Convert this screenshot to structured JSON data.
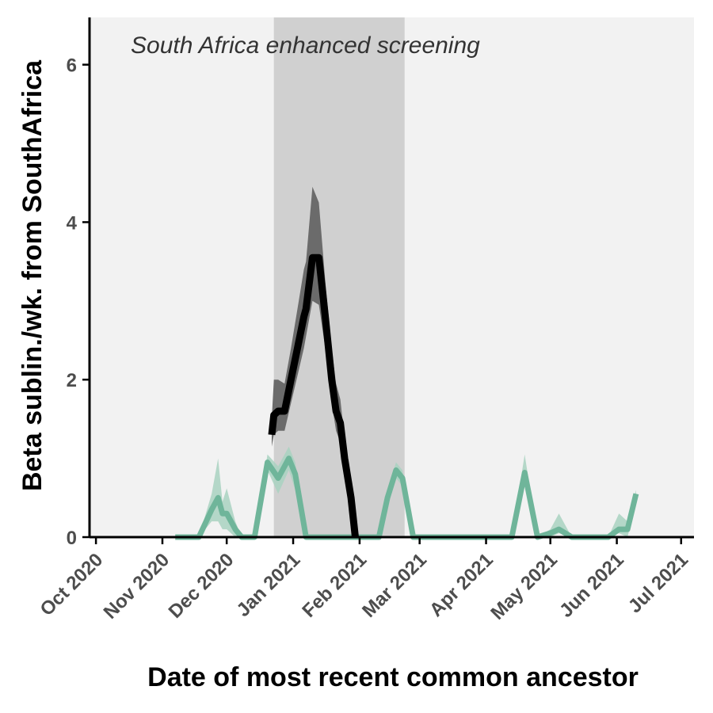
{
  "chart_data": {
    "type": "line",
    "title": "",
    "xlabel": "Date of most recent common ancestor",
    "ylabel": "Beta sublin./wk. from SouthAfrica",
    "annotation": "South Africa enhanced screening",
    "x_domain": [
      "2020-10-01",
      "2021-07-01"
    ],
    "xlim": [
      "2020-09-28",
      "2021-07-07"
    ],
    "ylim": [
      0,
      6.6
    ],
    "y_ticks": [
      0,
      2,
      4,
      6
    ],
    "x_ticks": [
      {
        "date": "2020-10-01",
        "label": "Oct 2020"
      },
      {
        "date": "2020-11-01",
        "label": "Nov 2020"
      },
      {
        "date": "2020-12-01",
        "label": "Dec 2020"
      },
      {
        "date": "2021-01-01",
        "label": "Jan 2021"
      },
      {
        "date": "2021-02-01",
        "label": "Feb 2021"
      },
      {
        "date": "2021-03-01",
        "label": "Mar 2021"
      },
      {
        "date": "2021-04-01",
        "label": "Apr 2021"
      },
      {
        "date": "2021-05-01",
        "label": "May 2021"
      },
      {
        "date": "2021-06-01",
        "label": "Jun 2021"
      },
      {
        "date": "2021-07-01",
        "label": "Jul 2021"
      }
    ],
    "highlight_period": {
      "start": "2020-12-23",
      "end": "2021-02-22"
    },
    "colors": {
      "panel_background": "#f2f2f2",
      "highlight": "#d0d0d0",
      "series_black": "#000000",
      "band_black": "#6b6b6b",
      "series_green": "#6fb59a",
      "band_green": "#a9d2c1"
    },
    "grid": false,
    "series": [
      {
        "color": "#6fb59a",
        "band_color": "#a9d2c1",
        "points": [
          {
            "x": "2020-11-07",
            "y": 0,
            "lo": 0,
            "hi": 0
          },
          {
            "x": "2020-11-18",
            "y": 0,
            "lo": 0,
            "hi": 0
          },
          {
            "x": "2020-11-24",
            "y": 0.35,
            "lo": 0.2,
            "hi": 0.55
          },
          {
            "x": "2020-11-27",
            "y": 0.5,
            "lo": 0.2,
            "hi": 1.0
          },
          {
            "x": "2020-11-29",
            "y": 0.3,
            "lo": 0.1,
            "hi": 0.45
          },
          {
            "x": "2020-12-01",
            "y": 0.3,
            "lo": 0.1,
            "hi": 0.62
          },
          {
            "x": "2020-12-05",
            "y": 0.1,
            "lo": 0,
            "hi": 0.2
          },
          {
            "x": "2020-12-08",
            "y": 0,
            "lo": 0,
            "hi": 0
          },
          {
            "x": "2020-12-14",
            "y": 0,
            "lo": 0,
            "hi": 0
          },
          {
            "x": "2020-12-20",
            "y": 0.95,
            "lo": 0.85,
            "hi": 1.05
          },
          {
            "x": "2020-12-25",
            "y": 0.75,
            "lo": 0.55,
            "hi": 0.9
          },
          {
            "x": "2020-12-30",
            "y": 1.0,
            "lo": 0.85,
            "hi": 1.15
          },
          {
            "x": "2021-01-02",
            "y": 0.8,
            "lo": 0.6,
            "hi": 0.95
          },
          {
            "x": "2021-01-07",
            "y": 0,
            "lo": 0,
            "hi": 0
          },
          {
            "x": "2021-02-10",
            "y": 0,
            "lo": 0,
            "hi": 0
          },
          {
            "x": "2021-02-14",
            "y": 0.5,
            "lo": 0.4,
            "hi": 0.6
          },
          {
            "x": "2021-02-18",
            "y": 0.85,
            "lo": 0.75,
            "hi": 0.95
          },
          {
            "x": "2021-02-21",
            "y": 0.75,
            "lo": 0.65,
            "hi": 0.85
          },
          {
            "x": "2021-02-26",
            "y": 0,
            "lo": 0,
            "hi": 0
          },
          {
            "x": "2021-04-13",
            "y": 0,
            "lo": 0,
            "hi": 0
          },
          {
            "x": "2021-04-19",
            "y": 0.82,
            "lo": 0.7,
            "hi": 1.05
          },
          {
            "x": "2021-04-25",
            "y": 0,
            "lo": 0,
            "hi": 0
          },
          {
            "x": "2021-05-01",
            "y": 0.05,
            "lo": 0,
            "hi": 0.1
          },
          {
            "x": "2021-05-05",
            "y": 0.1,
            "lo": 0.05,
            "hi": 0.3
          },
          {
            "x": "2021-05-11",
            "y": 0,
            "lo": 0,
            "hi": 0
          },
          {
            "x": "2021-05-28",
            "y": 0,
            "lo": 0,
            "hi": 0
          },
          {
            "x": "2021-06-02",
            "y": 0.1,
            "lo": 0.05,
            "hi": 0.3
          },
          {
            "x": "2021-06-06",
            "y": 0.1,
            "lo": 0,
            "hi": 0.2
          },
          {
            "x": "2021-06-10",
            "y": 0.55,
            "lo": 0.45,
            "hi": 0.6
          }
        ]
      },
      {
        "color": "#000000",
        "band_color": "#6b6b6b",
        "points": [
          {
            "x": "2020-12-22",
            "y": 1.3,
            "lo": 1.15,
            "hi": 1.5
          },
          {
            "x": "2020-12-23",
            "y": 1.55,
            "lo": 1.3,
            "hi": 2.0
          },
          {
            "x": "2020-12-25",
            "y": 1.6,
            "lo": 1.35,
            "hi": 2.0
          },
          {
            "x": "2020-12-28",
            "y": 1.6,
            "lo": 1.35,
            "hi": 1.95
          },
          {
            "x": "2020-12-31",
            "y": 2.0,
            "lo": 1.7,
            "hi": 2.4
          },
          {
            "x": "2021-01-03",
            "y": 2.4,
            "lo": 2.05,
            "hi": 2.9
          },
          {
            "x": "2021-01-06",
            "y": 2.8,
            "lo": 2.4,
            "hi": 3.4
          },
          {
            "x": "2021-01-07",
            "y": 2.9,
            "lo": 2.55,
            "hi": 3.5
          },
          {
            "x": "2021-01-10",
            "y": 3.55,
            "lo": 3.0,
            "hi": 4.45
          },
          {
            "x": "2021-01-13",
            "y": 3.55,
            "lo": 2.95,
            "hi": 4.25
          },
          {
            "x": "2021-01-16",
            "y": 2.8,
            "lo": 2.4,
            "hi": 3.25
          },
          {
            "x": "2021-01-19",
            "y": 2.0,
            "lo": 1.7,
            "hi": 2.4
          },
          {
            "x": "2021-01-21",
            "y": 1.6,
            "lo": 1.35,
            "hi": 1.95
          },
          {
            "x": "2021-01-23",
            "y": 1.45,
            "lo": 1.2,
            "hi": 1.75
          },
          {
            "x": "2021-01-25",
            "y": 1.0,
            "lo": 0.85,
            "hi": 1.25
          },
          {
            "x": "2021-01-28",
            "y": 0.5,
            "lo": 0.4,
            "hi": 0.65
          },
          {
            "x": "2021-01-30",
            "y": 0,
            "lo": 0,
            "hi": 0
          }
        ]
      }
    ]
  }
}
